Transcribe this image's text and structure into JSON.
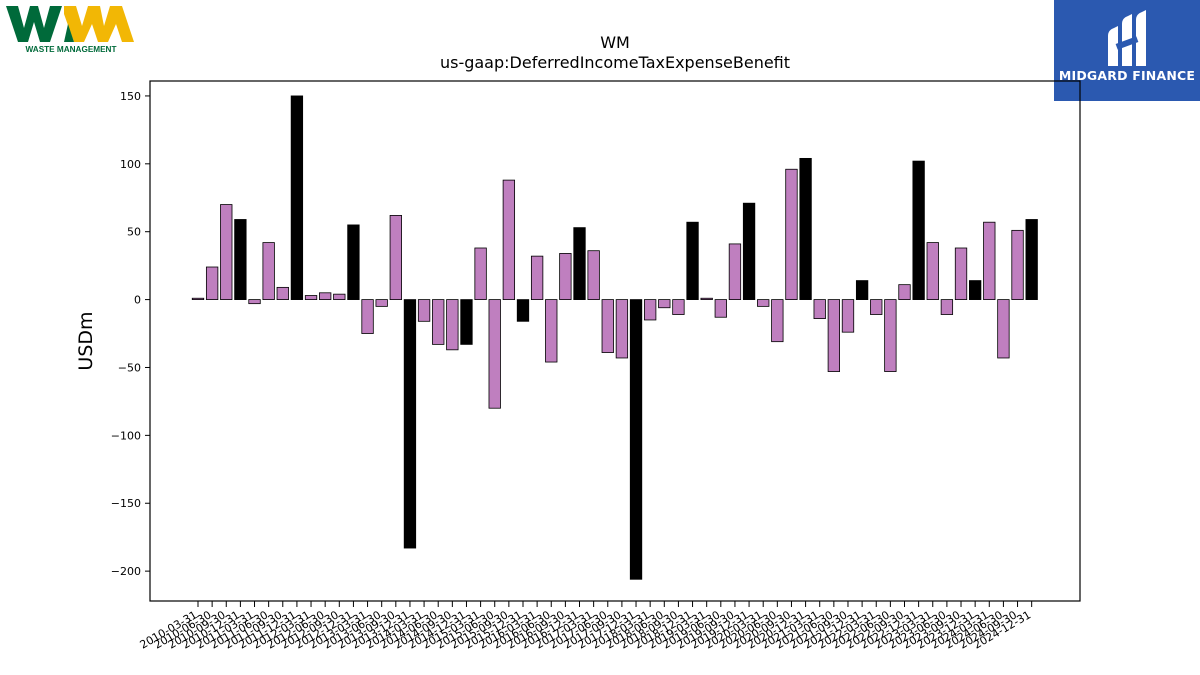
{
  "logos": {
    "left": {
      "letters": "WM",
      "caption": "WASTE MANAGEMENT",
      "green": "#006a3a",
      "yellow": "#f2b705"
    },
    "right": {
      "caption": "MIDGARD FINANCE",
      "background": "#2b59b0"
    }
  },
  "chart_data": {
    "type": "bar",
    "title": "WM",
    "subtitle": "us-gaap:DeferredIncomeTaxExpenseBenefit",
    "ylabel": "USDm",
    "xlabel": "",
    "ylim": [
      -222,
      161
    ],
    "yticks": [
      150,
      100,
      50,
      0,
      -50,
      -100,
      -150,
      -200
    ],
    "grid": false,
    "colors": {
      "quarter": "#bf7fbf",
      "year_end": "#000000",
      "edge": "#000000"
    },
    "categories": [
      "2010-03-31",
      "2010-06-30",
      "2010-09-30",
      "2010-12-31",
      "2011-03-31",
      "2011-06-30",
      "2011-09-30",
      "2011-12-31",
      "2012-03-31",
      "2012-06-30",
      "2012-09-30",
      "2012-12-31",
      "2013-03-31",
      "2013-06-30",
      "2013-09-30",
      "2013-12-31",
      "2014-03-31",
      "2014-06-30",
      "2014-09-30",
      "2014-12-31",
      "2015-03-31",
      "2015-06-30",
      "2015-09-30",
      "2015-12-31",
      "2016-03-31",
      "2016-06-30",
      "2016-09-30",
      "2016-12-31",
      "2017-03-31",
      "2017-06-30",
      "2017-09-30",
      "2017-12-31",
      "2018-03-31",
      "2018-06-30",
      "2018-09-30",
      "2018-12-31",
      "2019-03-31",
      "2019-06-30",
      "2019-09-30",
      "2019-12-31",
      "2020-03-31",
      "2020-06-30",
      "2020-09-30",
      "2020-12-31",
      "2021-03-31",
      "2021-06-30",
      "2021-09-30",
      "2021-12-31",
      "2022-03-31",
      "2022-06-30",
      "2022-09-30",
      "2022-12-31",
      "2023-03-31",
      "2023-06-30",
      "2023-09-30",
      "2023-12-31",
      "2024-03-31",
      "2024-06-30",
      "2024-09-30",
      "2024-12-31"
    ],
    "values": [
      1,
      24,
      70,
      59,
      -3,
      42,
      9,
      150,
      3,
      5,
      4,
      55,
      -25,
      -5,
      62,
      -183,
      -16,
      -33,
      -37,
      -33,
      38,
      -80,
      88,
      -16,
      32,
      -46,
      34,
      53,
      36,
      -39,
      -43,
      -206,
      -15,
      -6,
      -11,
      57,
      1,
      -13,
      41,
      71,
      -5,
      -31,
      96,
      104,
      -14,
      -53,
      -24,
      14,
      -11,
      -53,
      11,
      102,
      42,
      -11,
      38,
      14,
      57,
      -43,
      51,
      59
    ]
  }
}
